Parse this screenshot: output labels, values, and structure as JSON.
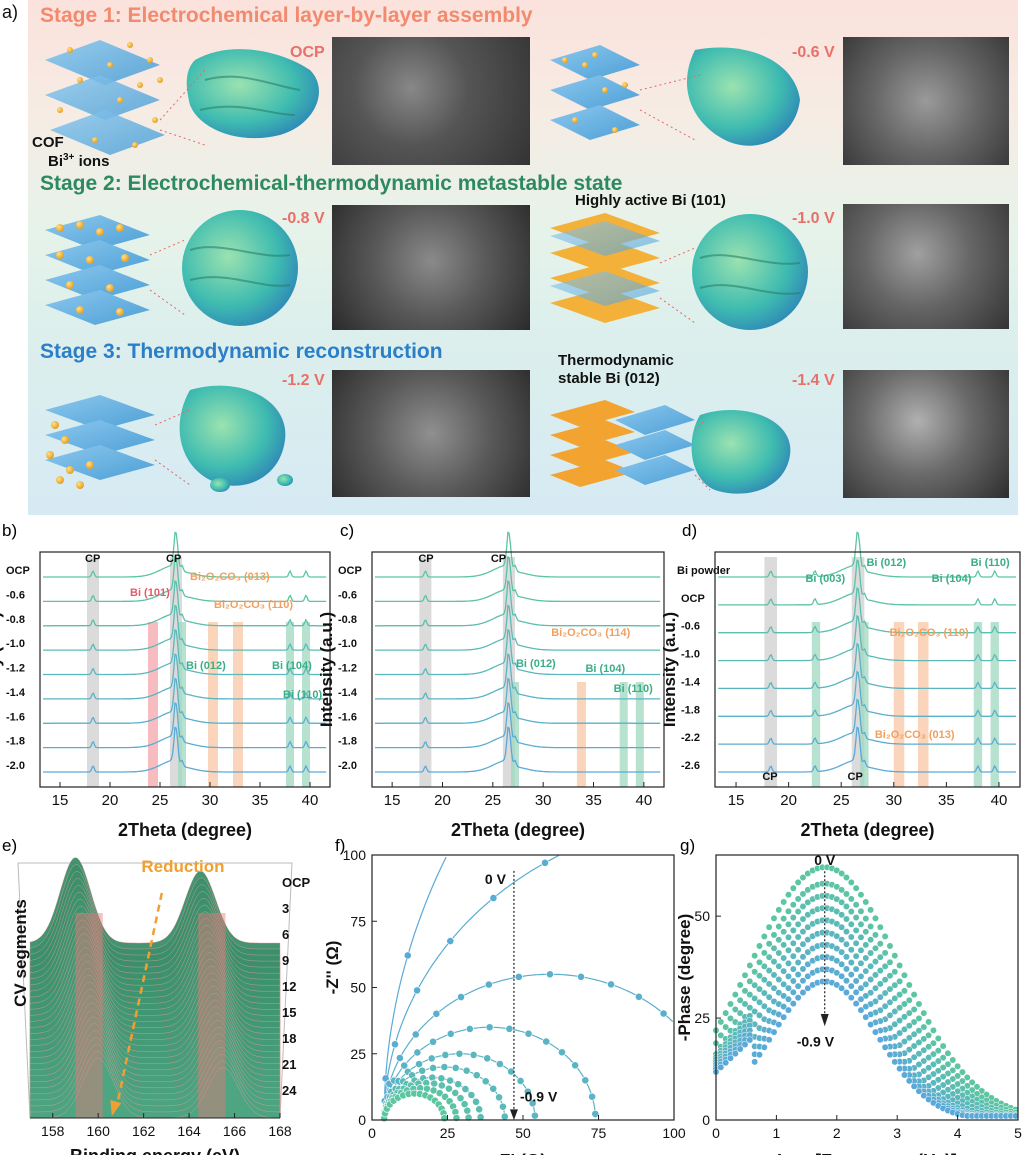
{
  "panel_a": {
    "letter": "a)",
    "stages": [
      {
        "title": "Stage 1: Electrochemical layer-by-layer assembly",
        "color": "#f28a6f"
      },
      {
        "title": "Stage 2: Electrochemical-thermodynamic metastable state",
        "color": "#2e8a5e"
      },
      {
        "title": "Stage 3: Thermodynamic reconstruction",
        "color": "#2b7fc9"
      }
    ],
    "labels": {
      "cof": "COF",
      "bi_ions_base": "Bi",
      "bi_ions_sup": "3+",
      "bi_ions_tail": " ions",
      "highly_active": "Highly active Bi (101)",
      "thermo_line1": "Thermodynamic",
      "thermo_line2": "stable Bi (012)"
    },
    "voltages": [
      "OCP",
      "-0.6 V",
      "-0.8 V",
      "-1.0 V",
      "-1.2 V",
      "-1.4 V"
    ]
  },
  "chart_data": [
    {
      "panel": "b)",
      "type": "line",
      "xlabel": "2Theta (degree)",
      "ylabel": "Intensity (a.u.)",
      "xlim": [
        13,
        42
      ],
      "xticks": [
        15,
        20,
        25,
        30,
        35,
        40
      ],
      "series_labels": [
        "OCP",
        "-0.6",
        "-0.8",
        "-1.0",
        "-1.2",
        "-1.4",
        "-1.6",
        "-1.8",
        "-2.0"
      ],
      "peaks": [
        18.3,
        26.6,
        27.2,
        38.0,
        39.6
      ],
      "annotations": [
        {
          "text": "CP",
          "x": 17.5,
          "color": "#111"
        },
        {
          "text": "CP",
          "x": 25.6,
          "color": "#111"
        },
        {
          "text": "Bi (101)",
          "x": 22.0,
          "color": "#e05a6a"
        },
        {
          "text": "Bi₂O₂CO₃ (013)",
          "x": 28.0,
          "color": "#f0a060"
        },
        {
          "text": "Bi₂O₂CO₃ (110)",
          "x": 30.4,
          "color": "#f0a060"
        },
        {
          "text": "Bi (012)",
          "x": 27.6,
          "color": "#3aae88"
        },
        {
          "text": "Bi (104)",
          "x": 36.2,
          "color": "#3aae88"
        },
        {
          "text": "Bi (110)",
          "x": 37.3,
          "color": "#3aae88"
        }
      ]
    },
    {
      "panel": "c)",
      "type": "line",
      "xlabel": "2Theta (degree)",
      "ylabel": "Intensity (a.u.)",
      "xlim": [
        13,
        42
      ],
      "xticks": [
        15,
        20,
        25,
        30,
        35,
        40
      ],
      "series_labels": [
        "OCP",
        "-0.6",
        "-0.8",
        "-1.0",
        "-1.2",
        "-1.4",
        "-1.6",
        "-1.8",
        "-2.0"
      ],
      "peaks": [
        18.3,
        26.6,
        27.2
      ],
      "annotations": [
        {
          "text": "CP",
          "x": 17.6,
          "color": "#111"
        },
        {
          "text": "CP",
          "x": 24.8,
          "color": "#111"
        },
        {
          "text": "Bi₂O₂CO₃ (114)",
          "x": 30.8,
          "color": "#f0a060"
        },
        {
          "text": "Bi (012)",
          "x": 27.3,
          "color": "#3aae88"
        },
        {
          "text": "Bi (104)",
          "x": 34.2,
          "color": "#3aae88"
        },
        {
          "text": "Bi (110)",
          "x": 37.0,
          "color": "#3aae88"
        }
      ]
    },
    {
      "panel": "d)",
      "type": "line",
      "xlabel": "2Theta (degree)",
      "ylabel": "Intensity (a.u.)",
      "xlim": [
        13,
        42
      ],
      "xticks": [
        15,
        20,
        25,
        30,
        35,
        40
      ],
      "series_labels": [
        "Bi powder",
        "OCP",
        "-0.6",
        "-1.0",
        "-1.4",
        "-1.8",
        "-2.2",
        "-2.6"
      ],
      "peaks": [
        18.3,
        22.5,
        26.6,
        27.2,
        38.0,
        39.6
      ],
      "annotations": [
        {
          "text": "Bi (003)",
          "x": 21.6,
          "color": "#3aae88"
        },
        {
          "text": "Bi (012)",
          "x": 27.4,
          "color": "#3aae88"
        },
        {
          "text": "Bi (104)",
          "x": 33.6,
          "color": "#3aae88"
        },
        {
          "text": "Bi (110)",
          "x": 37.3,
          "color": "#3aae88"
        },
        {
          "text": "Bi₂O₂CO₃ (110)",
          "x": 29.6,
          "color": "#f0a060"
        },
        {
          "text": "Bi₂O₂CO₃ (013)",
          "x": 28.2,
          "color": "#f0a060"
        },
        {
          "text": "CP",
          "x": 17.5,
          "color": "#111"
        },
        {
          "text": "CP",
          "x": 25.6,
          "color": "#111"
        }
      ]
    },
    {
      "panel": "e)",
      "type": "heatmap",
      "xlabel": "Binding energy (eV)",
      "ylabel": "CV segments",
      "xlim": [
        157,
        168
      ],
      "xticks": [
        158,
        160,
        162,
        164,
        166,
        168
      ],
      "segment_labels": [
        "OCP",
        "3",
        "6",
        "9",
        "12",
        "15",
        "18",
        "21",
        "24"
      ],
      "annotation": "Reduction",
      "peaks_start": [
        159.0,
        164.5
      ],
      "peaks_end": [
        160.0,
        165.5
      ]
    },
    {
      "panel": "f)",
      "type": "scatter",
      "xlabel": "Z' (Ω)",
      "ylabel": "-Z'' (Ω)",
      "xlim": [
        0,
        100
      ],
      "ylim": [
        0,
        100
      ],
      "xticks": [
        0,
        25,
        50,
        75,
        100
      ],
      "yticks": [
        0,
        25,
        50,
        75,
        100
      ],
      "top_label": "0 V",
      "bottom_label": "-0.9 V",
      "arrow_x": 47,
      "radii": [
        250,
        115,
        55,
        35,
        25,
        20,
        16,
        14,
        12,
        10
      ],
      "offset": 4
    },
    {
      "panel": "g)",
      "type": "scatter",
      "xlabel": "Log [Frequency (Hz)]",
      "ylabel": "-Phase (degree)",
      "xlim": [
        0,
        5
      ],
      "ylim": [
        0,
        65
      ],
      "xticks": [
        0,
        1,
        2,
        3,
        4,
        5
      ],
      "yticks": [
        0,
        25,
        50
      ],
      "top_label": "0 V",
      "bottom_label": "-0.9 V",
      "peak_x": 1.8,
      "peak_heights": [
        62,
        58,
        55,
        52,
        49,
        46,
        43,
        40,
        37,
        34
      ],
      "peak_widths": [
        1.25,
        1.2,
        1.15,
        1.1,
        1.05,
        1.0,
        0.95,
        0.92,
        0.9,
        0.88
      ]
    }
  ],
  "colors": {
    "green": "#5cc6a0",
    "blue": "#5aa9d9",
    "cp_band": "#cfcfcf",
    "bi_band": "#9fd8c0",
    "bioc_band": "#f8c7a6",
    "bi101_band": "#f4a5ab",
    "voltage_red": "#e8706a"
  }
}
